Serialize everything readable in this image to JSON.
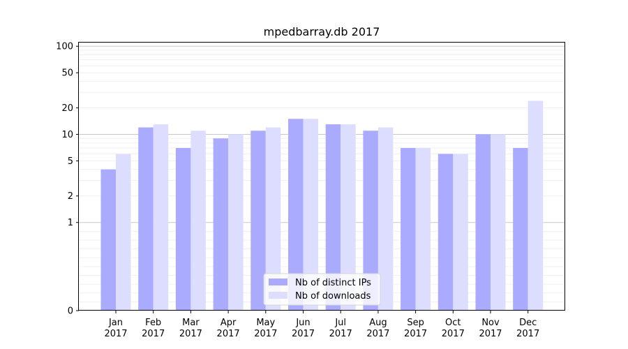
{
  "chart_data": {
    "type": "bar",
    "title": "mpedbarray.db 2017",
    "xlabel": "",
    "ylabel": "",
    "y_scale": "symlog",
    "ylim": [
      0,
      110
    ],
    "categories": [
      [
        "Jan",
        "2017"
      ],
      [
        "Feb",
        "2017"
      ],
      [
        "Mar",
        "2017"
      ],
      [
        "Apr",
        "2017"
      ],
      [
        "May",
        "2017"
      ],
      [
        "Jun",
        "2017"
      ],
      [
        "Jul",
        "2017"
      ],
      [
        "Aug",
        "2017"
      ],
      [
        "Sep",
        "2017"
      ],
      [
        "Oct",
        "2017"
      ],
      [
        "Nov",
        "2017"
      ],
      [
        "Dec",
        "2017"
      ]
    ],
    "y_ticks": [
      0,
      1,
      2,
      5,
      10,
      20,
      50,
      100
    ],
    "series": [
      {
        "name": "Nb of distinct IPs",
        "color": "#aaaaff",
        "values": [
          4,
          12,
          7,
          9,
          11,
          15,
          13,
          11,
          7,
          6,
          10,
          7
        ]
      },
      {
        "name": "Nb of downloads",
        "color": "#ddddff",
        "values": [
          6,
          13,
          11,
          10,
          12,
          15,
          13,
          12,
          7,
          6,
          10,
          24
        ]
      }
    ],
    "grid": true,
    "legend_position": "bottom-center"
  }
}
